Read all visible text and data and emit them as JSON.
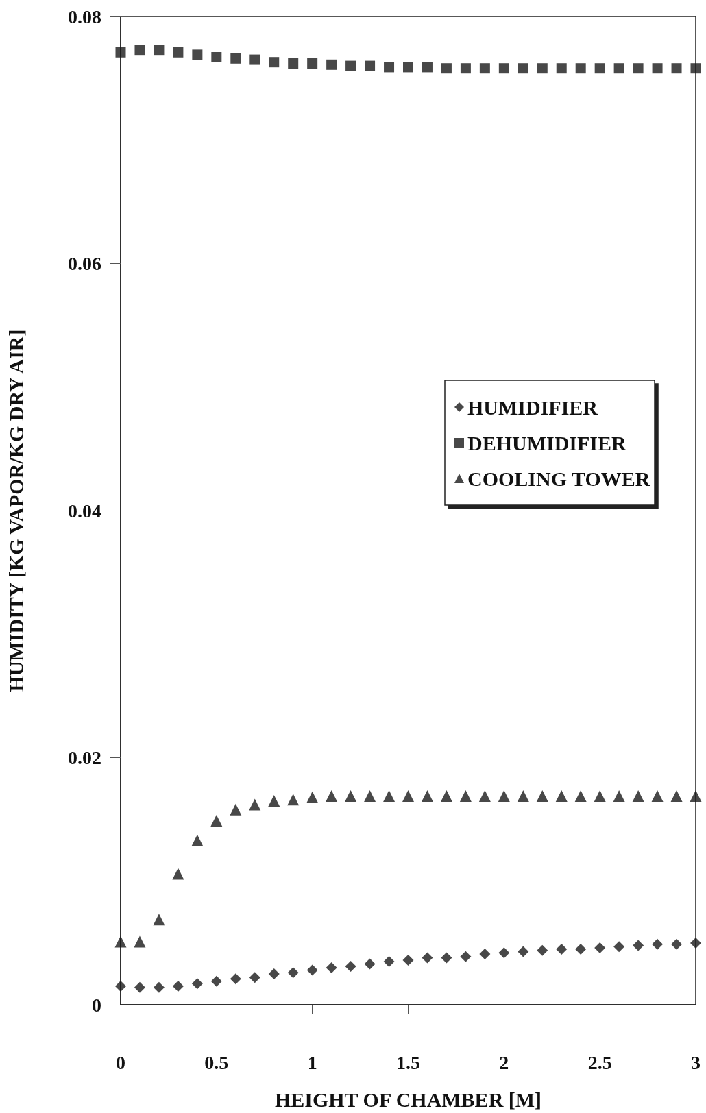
{
  "chart_data": {
    "type": "scatter",
    "xlabel": "HEIGHT OF CHAMBER [M]",
    "ylabel": "HUMIDITY [KG VAPOR/KG DRY AIR]",
    "x": [
      0,
      0.1,
      0.2,
      0.3,
      0.4,
      0.5,
      0.6,
      0.7,
      0.8,
      0.9,
      1.0,
      1.1,
      1.2,
      1.3,
      1.4,
      1.5,
      1.6,
      1.7,
      1.8,
      1.9,
      2.0,
      2.1,
      2.2,
      2.3,
      2.4,
      2.5,
      2.6,
      2.7,
      2.8,
      2.9,
      3.0
    ],
    "series": [
      {
        "name": "HUMIDIFIER",
        "color": "#1a1a1a",
        "marker": "diamond",
        "values": [
          0.0015,
          0.0014,
          0.0014,
          0.0015,
          0.0017,
          0.0019,
          0.0021,
          0.0022,
          0.0025,
          0.0026,
          0.0028,
          0.003,
          0.0031,
          0.0033,
          0.0035,
          0.0036,
          0.0038,
          0.0038,
          0.0039,
          0.0041,
          0.0042,
          0.0043,
          0.0044,
          0.0045,
          0.0045,
          0.0046,
          0.0047,
          0.0048,
          0.0049,
          0.0049,
          0.005
        ]
      },
      {
        "name": "DEHUMIDIFIER",
        "color": "#1a1a1a",
        "marker": "square",
        "values": [
          0.0771,
          0.0773,
          0.0773,
          0.0771,
          0.0769,
          0.0767,
          0.0766,
          0.0765,
          0.0763,
          0.0762,
          0.0762,
          0.0761,
          0.076,
          0.076,
          0.0759,
          0.0759,
          0.0759,
          0.0758,
          0.0758,
          0.0758,
          0.0758,
          0.0758,
          0.0758,
          0.0758,
          0.0758,
          0.0758,
          0.0758,
          0.0758,
          0.0758,
          0.0758,
          0.0758
        ]
      },
      {
        "name": "COOLING TOWER",
        "color": "#1a1a1a",
        "marker": "triangle",
        "values": [
          0.0051,
          0.0051,
          0.0069,
          0.0106,
          0.0133,
          0.0149,
          0.0158,
          0.0162,
          0.0165,
          0.0166,
          0.0168,
          0.0169,
          0.0169,
          0.0169,
          0.0169,
          0.0169,
          0.0169,
          0.0169,
          0.0169,
          0.0169,
          0.0169,
          0.0169,
          0.0169,
          0.0169,
          0.0169,
          0.0169,
          0.0169,
          0.0169,
          0.0169,
          0.0169,
          0.0169
        ]
      }
    ],
    "xlim": [
      0,
      3
    ],
    "xticks": [
      0,
      0.5,
      1,
      1.5,
      2,
      2.5,
      3
    ],
    "ylim": [
      0,
      0.08
    ],
    "yticks": [
      0,
      0.02,
      0.04,
      0.06,
      0.08
    ],
    "grid": false,
    "legend": "right"
  }
}
